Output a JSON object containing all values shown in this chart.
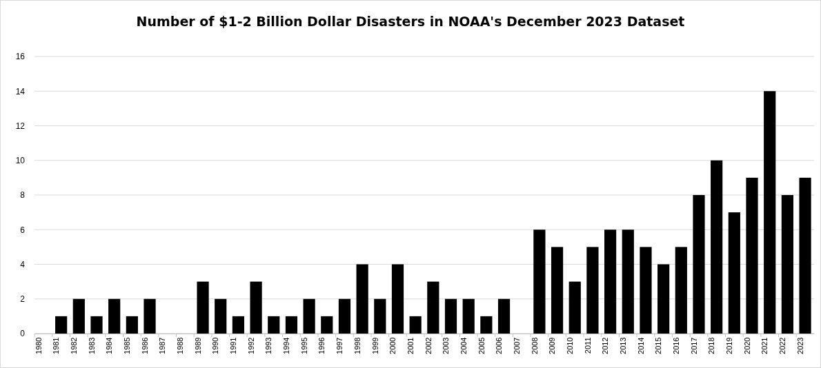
{
  "chart_data": {
    "type": "bar",
    "title": "Number of $1-2 Billion Dollar Disasters in NOAA's December 2023 Dataset",
    "categories": [
      "1980",
      "1981",
      "1982",
      "1983",
      "1984",
      "1985",
      "1986",
      "1987",
      "1988",
      "1989",
      "1990",
      "1991",
      "1992",
      "1993",
      "1994",
      "1995",
      "1996",
      "1997",
      "1998",
      "1999",
      "2000",
      "2001",
      "2002",
      "2003",
      "2004",
      "2005",
      "2006",
      "2007",
      "2008",
      "2009",
      "2010",
      "2011",
      "2012",
      "2013",
      "2014",
      "2015",
      "2016",
      "2017",
      "2018",
      "2019",
      "2020",
      "2021",
      "2022",
      "2023"
    ],
    "values": [
      0,
      1,
      2,
      1,
      2,
      1,
      2,
      0,
      0,
      3,
      2,
      1,
      3,
      1,
      1,
      2,
      1,
      2,
      4,
      2,
      4,
      1,
      3,
      2,
      2,
      1,
      2,
      0,
      6,
      5,
      3,
      5,
      6,
      6,
      5,
      4,
      5,
      8,
      10,
      7,
      9,
      14,
      8,
      9
    ],
    "color": "#000000",
    "ylim": [
      0,
      16
    ],
    "yticks": [
      0,
      2,
      4,
      6,
      8,
      10,
      12,
      14,
      16
    ],
    "grid": "y"
  }
}
